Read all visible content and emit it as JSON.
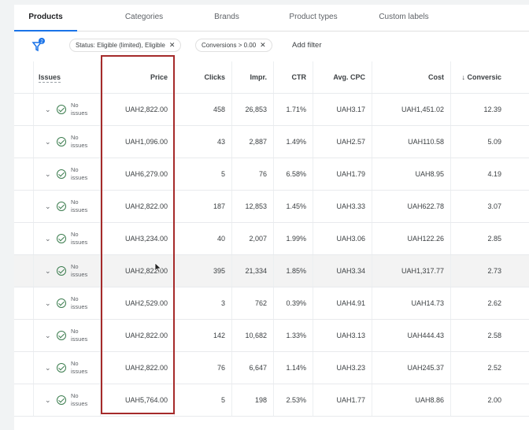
{
  "tabs": [
    "Products",
    "Categories",
    "Brands",
    "Product types",
    "Custom labels"
  ],
  "filters": {
    "count": "2",
    "chips": [
      "Status: Eligible (limited), Eligible",
      "Conversions > 0.00"
    ],
    "add_filter": "Add filter"
  },
  "columns": [
    "Issues",
    "Price",
    "Clicks",
    "Impr.",
    "CTR",
    "Avg. CPC",
    "Cost",
    "↓ Conversic"
  ],
  "issue_text": [
    "No",
    "issues"
  ],
  "rows": [
    [
      "UAH2,822.00",
      "458",
      "26,853",
      "1.71%",
      "UAH3.17",
      "UAH1,451.02",
      "12.39"
    ],
    [
      "UAH1,096.00",
      "43",
      "2,887",
      "1.49%",
      "UAH2.57",
      "UAH110.58",
      "5.09"
    ],
    [
      "UAH6,279.00",
      "5",
      "76",
      "6.58%",
      "UAH1.79",
      "UAH8.95",
      "4.19"
    ],
    [
      "UAH2,822.00",
      "187",
      "12,853",
      "1.45%",
      "UAH3.33",
      "UAH622.78",
      "3.07"
    ],
    [
      "UAH3,234.00",
      "40",
      "2,007",
      "1.99%",
      "UAH3.06",
      "UAH122.26",
      "2.85"
    ],
    [
      "UAH2,822.00",
      "395",
      "21,334",
      "1.85%",
      "UAH3.34",
      "UAH1,317.77",
      "2.73"
    ],
    [
      "UAH2,529.00",
      "3",
      "762",
      "0.39%",
      "UAH4.91",
      "UAH14.73",
      "2.62"
    ],
    [
      "UAH2,822.00",
      "142",
      "10,682",
      "1.33%",
      "UAH3.13",
      "UAH444.43",
      "2.58"
    ],
    [
      "UAH2,822.00",
      "76",
      "6,647",
      "1.14%",
      "UAH3.23",
      "UAH245.37",
      "2.52"
    ],
    [
      "UAH5,764.00",
      "5",
      "198",
      "2.53%",
      "UAH1.77",
      "UAH8.86",
      "2.00"
    ]
  ],
  "colors": {
    "accent": "#1a73e8",
    "highlight_box": "#a52a2a",
    "check": "#3c7d4f"
  }
}
